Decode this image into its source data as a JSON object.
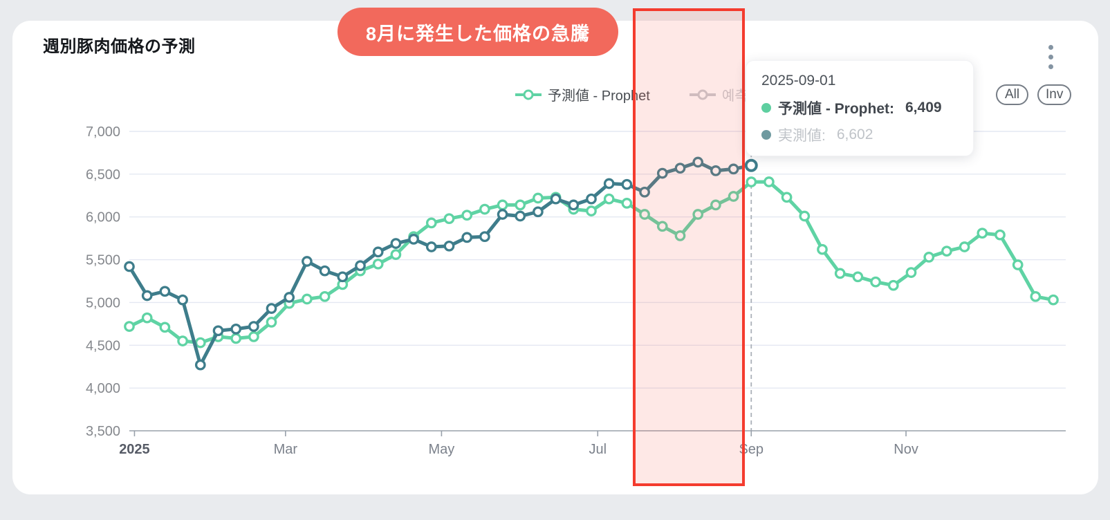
{
  "header": {
    "title": "週別豚肉価格の予測"
  },
  "annotation": {
    "badge_label": "8月に発生した価格の急騰",
    "badge_color": "#f2695c",
    "region_border_color": "#f43b2e",
    "region_fill_color": "rgba(248,98,85,0.15)"
  },
  "toolbar": {
    "all_label": "All",
    "inv_label": "Inv",
    "menu_icon": "kebab-menu"
  },
  "legend": {
    "items": [
      {
        "label": "予測値 - Prophet",
        "color": "#5fd3a4",
        "active": true
      },
      {
        "label": "예측",
        "color": "#c9ccd0",
        "active": false
      }
    ]
  },
  "tooltip": {
    "date": "2025-09-01",
    "rows": [
      {
        "label": "予測値 - Prophet:",
        "value": "6,409",
        "color": "#5ecfa0",
        "muted": false
      },
      {
        "label": "実測値:",
        "value": "6,602",
        "color": "#6f9aa0",
        "muted": true
      }
    ]
  },
  "chart_data": {
    "type": "line",
    "title": "週別豚肉価格の予測",
    "ylim": [
      3500,
      7000
    ],
    "ytick_step": 500,
    "grid": true,
    "legend_position": "top",
    "hover": {
      "index": 35,
      "date": "2025-09-01"
    },
    "xticks": [
      {
        "label": "2025",
        "index": 0.29,
        "bold": true
      },
      {
        "label": "Mar",
        "index": 8.79
      },
      {
        "label": "May",
        "index": 17.57
      },
      {
        "label": "Jul",
        "index": 26.36
      },
      {
        "label": "Sep",
        "index": 35.0
      },
      {
        "label": "Nov",
        "index": 43.71
      }
    ],
    "x": [
      "2024-12-30",
      "2025-01-06",
      "2025-01-13",
      "2025-01-20",
      "2025-01-27",
      "2025-02-03",
      "2025-02-10",
      "2025-02-17",
      "2025-02-24",
      "2025-03-03",
      "2025-03-10",
      "2025-03-17",
      "2025-03-24",
      "2025-03-31",
      "2025-04-07",
      "2025-04-14",
      "2025-04-21",
      "2025-04-28",
      "2025-05-05",
      "2025-05-12",
      "2025-05-19",
      "2025-05-26",
      "2025-06-02",
      "2025-06-09",
      "2025-06-16",
      "2025-06-23",
      "2025-06-30",
      "2025-07-07",
      "2025-07-14",
      "2025-07-21",
      "2025-07-28",
      "2025-08-04",
      "2025-08-11",
      "2025-08-18",
      "2025-08-25",
      "2025-09-01",
      "2025-09-08",
      "2025-09-15",
      "2025-09-22",
      "2025-09-29",
      "2025-10-06",
      "2025-10-13",
      "2025-10-20",
      "2025-10-27",
      "2025-11-03",
      "2025-11-10",
      "2025-11-17",
      "2025-11-24",
      "2025-12-01",
      "2025-12-08",
      "2025-12-15",
      "2025-12-22",
      "2025-12-29"
    ],
    "series": [
      {
        "id": "prophet",
        "name": "予測値 - Prophet",
        "color": "#5fd3a4",
        "values": [
          4720,
          4820,
          4710,
          4550,
          4530,
          4600,
          4580,
          4600,
          4770,
          4990,
          5040,
          5070,
          5210,
          5370,
          5450,
          5560,
          5770,
          5930,
          5980,
          6020,
          6090,
          6140,
          6140,
          6220,
          6230,
          6090,
          6070,
          6210,
          6160,
          6030,
          5890,
          5780,
          6030,
          6140,
          6240,
          6409,
          6410,
          6230,
          6010,
          5620,
          5340,
          5300,
          5240,
          5200,
          5350,
          5530,
          5600,
          5650,
          5810,
          5790,
          5440,
          5070,
          5030
        ]
      },
      {
        "id": "actual",
        "name": "実測値",
        "color": "#3e7d8b",
        "values": [
          5420,
          5080,
          5130,
          5030,
          4270,
          4670,
          4690,
          4720,
          4930,
          5060,
          5480,
          5370,
          5300,
          5430,
          5590,
          5690,
          5740,
          5650,
          5660,
          5760,
          5770,
          6030,
          6010,
          6060,
          6210,
          6140,
          6210,
          6390,
          6380,
          6290,
          6510,
          6570,
          6640,
          6540,
          6560,
          6602,
          null,
          null,
          null,
          null,
          null,
          null,
          null,
          null,
          null,
          null,
          null,
          null,
          null,
          null,
          null,
          null,
          null
        ]
      }
    ]
  }
}
